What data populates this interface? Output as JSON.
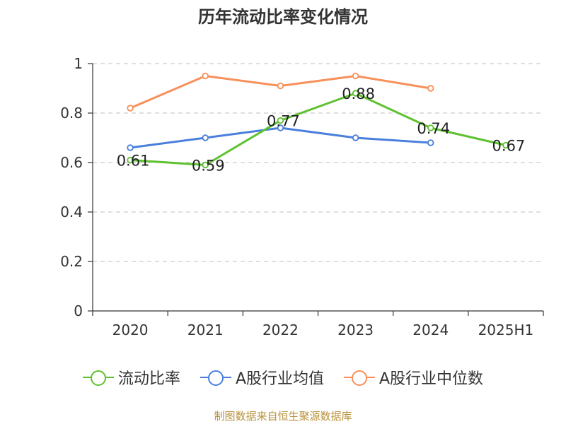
{
  "chart_data": {
    "type": "line",
    "title": "历年流动比率变化情况",
    "categories": [
      "2020",
      "2021",
      "2022",
      "2023",
      "2024",
      "2025H1"
    ],
    "ylim": [
      0,
      1
    ],
    "yticks": [
      "0",
      "0.2",
      "0.4",
      "0.6",
      "0.8",
      "1"
    ],
    "grid": true,
    "legend_position": "bottom",
    "series": [
      {
        "name": "流动比率",
        "color": "#5ec12f",
        "values": [
          0.61,
          0.59,
          0.77,
          0.88,
          0.74,
          0.67
        ],
        "labels": true
      },
      {
        "name": "A股行业均值",
        "color": "#4a7fdc",
        "values": [
          0.66,
          0.7,
          0.74,
          0.7,
          0.68,
          null
        ],
        "labels": false
      },
      {
        "name": "A股行业中位数",
        "color": "#f7905a",
        "values": [
          0.82,
          0.95,
          0.91,
          0.95,
          0.9,
          null
        ],
        "labels": false
      }
    ]
  },
  "footer": {
    "source": "制图数据来自恒生聚源数据库"
  }
}
